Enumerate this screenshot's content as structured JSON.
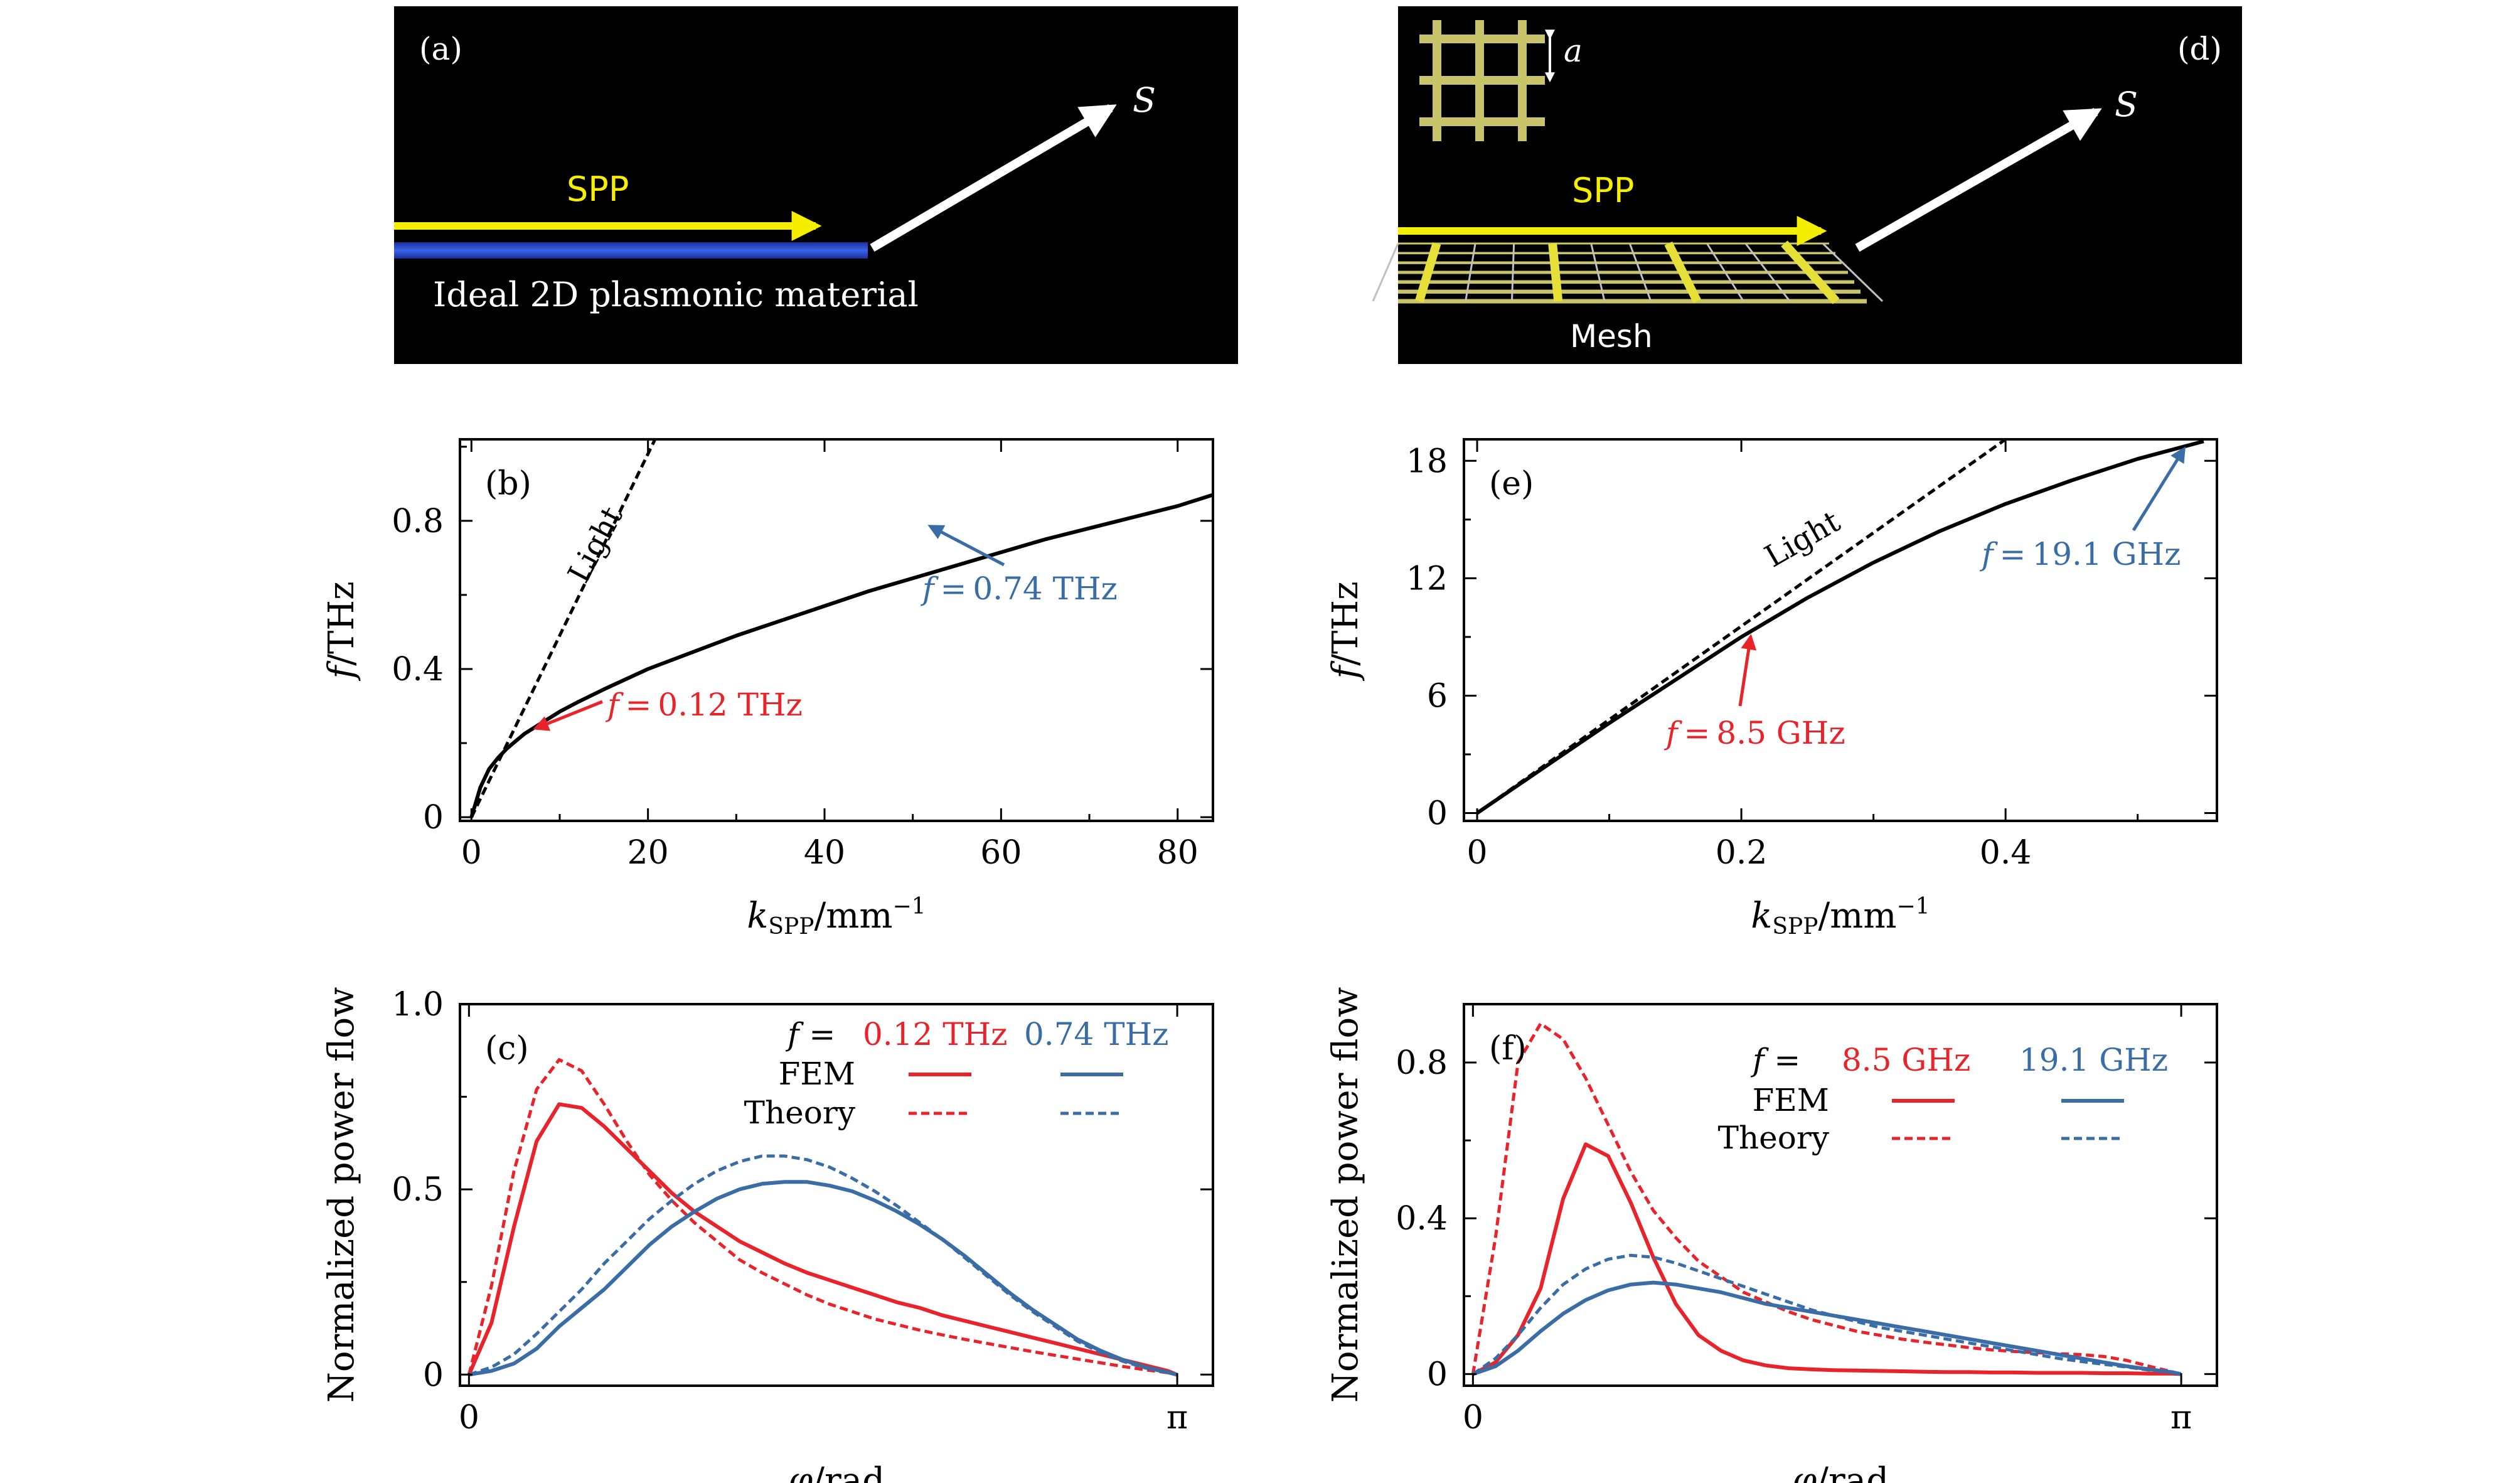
{
  "panel_a": {
    "label": "(a)",
    "spp_label": "SPP",
    "s_label": "S",
    "material_label": "Ideal 2D plasmonic material"
  },
  "panel_d": {
    "label": "(d)",
    "spp_label": "SPP",
    "s_label": "S",
    "period_label": "a",
    "mesh_label": "Mesh"
  },
  "chart_data": [
    {
      "type": "line",
      "panel": "(b)",
      "title": "",
      "xlabel": "k_SPP/mm⁻¹",
      "xlabel_main": "k",
      "xlabel_sub": "SPP",
      "xlabel_unit": "/mm",
      "xlabel_sup": "−1",
      "ylabel": "f/THz",
      "ylabel_main": "f",
      "ylabel_unit": "/THz",
      "xlim": [
        -1.3,
        84
      ],
      "ylim": [
        -0.01,
        1.02
      ],
      "xticks": [
        0,
        20,
        40,
        60,
        80
      ],
      "yticks": [
        0,
        0.4,
        0.8
      ],
      "xtick_labels": [
        "0",
        "20",
        "40",
        "60",
        "80"
      ],
      "ytick_labels": [
        "0",
        "0.4",
        "0.8"
      ],
      "series": [
        {
          "name": "",
          "style": "solid",
          "color": "#000000",
          "x": [
            0,
            1,
            2,
            3,
            4,
            5,
            6,
            8,
            10,
            12,
            15,
            20,
            25,
            30,
            35,
            40,
            45,
            50,
            55,
            60,
            65,
            70,
            75,
            80,
            84
          ],
          "y": [
            0,
            0.08,
            0.13,
            0.16,
            0.185,
            0.205,
            0.225,
            0.255,
            0.285,
            0.31,
            0.345,
            0.4,
            0.445,
            0.49,
            0.53,
            0.57,
            0.61,
            0.645,
            0.68,
            0.715,
            0.75,
            0.78,
            0.81,
            0.84,
            0.87
          ]
        },
        {
          "name": "Light",
          "style": "dashed",
          "color": "#000000",
          "x": [
            0,
            20.8
          ],
          "y": [
            0,
            1.02
          ]
        }
      ],
      "annotations": [
        {
          "text": "Light",
          "color": "#000000"
        },
        {
          "text": "f = 0.74 THz",
          "text_main": "f",
          "text_rest": " = 0.74 THz",
          "color": "#3A6CA5",
          "at": [
            52,
            0.785
          ]
        },
        {
          "text": "f = 0.12 THz",
          "text_main": "f",
          "text_rest": " = 0.12 THz",
          "color": "#E8242A",
          "at": [
            7.3,
            0.24
          ]
        }
      ]
    },
    {
      "type": "line",
      "panel": "(e)",
      "title": "",
      "xlabel": "k_SPP/mm⁻¹",
      "xlabel_main": "k",
      "xlabel_sub": "SPP",
      "xlabel_unit": "/mm",
      "xlabel_sup": "−1",
      "ylabel": "f/THz",
      "ylabel_main": "f",
      "ylabel_unit": "/THz",
      "xlim": [
        -0.01,
        0.56
      ],
      "ylim": [
        -0.4,
        19.1
      ],
      "xticks": [
        0,
        0.2,
        0.4
      ],
      "yticks": [
        0,
        6,
        12,
        18
      ],
      "xtick_labels": [
        "0",
        "0.2",
        "0.4"
      ],
      "ytick_labels": [
        "0",
        "6",
        "12",
        "18"
      ],
      "series": [
        {
          "name": "",
          "style": "solid",
          "color": "#000000",
          "x": [
            0,
            0.05,
            0.1,
            0.15,
            0.2,
            0.25,
            0.3,
            0.35,
            0.4,
            0.45,
            0.5,
            0.55
          ],
          "y": [
            0,
            2.3,
            4.6,
            6.8,
            9.0,
            11.0,
            12.8,
            14.4,
            15.8,
            17.0,
            18.1,
            19.0
          ]
        },
        {
          "name": "Light",
          "style": "dashed",
          "color": "#000000",
          "x": [
            0,
            0.4
          ],
          "y": [
            0,
            19.1
          ]
        }
      ],
      "annotations": [
        {
          "text": "Light",
          "color": "#000000"
        },
        {
          "text": "f = 19.1 GHz",
          "text_main": "f",
          "text_rest": " = 19.1 GHz",
          "color": "#3A6CA5",
          "at": [
            0.535,
            18.6
          ]
        },
        {
          "text": "f = 8.5 GHz",
          "text_main": "f",
          "text_rest": " = 8.5 GHz",
          "color": "#E8242A",
          "at": [
            0.207,
            9.0
          ]
        }
      ]
    },
    {
      "type": "line",
      "panel": "(c)",
      "title": "",
      "xlabel": "φ/rad",
      "xlabel_main": "φ",
      "xlabel_unit": "/rad",
      "ylabel": "Normalized power flow",
      "xlim": [
        -0.04,
        3.3
      ],
      "ylim": [
        -0.03,
        1.0
      ],
      "xticks": [
        0,
        3.14159
      ],
      "yticks": [
        0,
        0.5,
        1.0
      ],
      "xtick_labels": [
        "0",
        "π"
      ],
      "ytick_labels": [
        "0",
        "0.5",
        "1.0"
      ],
      "legend": {
        "f_label": "f =",
        "f_main": "f",
        "col1": "0.12 THz",
        "col2": "0.74 THz",
        "row1": "FEM",
        "row2": "Theory",
        "placement": "top-right"
      },
      "x": [
        0,
        0.1,
        0.2,
        0.3,
        0.4,
        0.5,
        0.6,
        0.7,
        0.8,
        0.9,
        1.0,
        1.1,
        1.2,
        1.3,
        1.4,
        1.5,
        1.6,
        1.7,
        1.8,
        1.9,
        2.0,
        2.1,
        2.2,
        2.3,
        2.4,
        2.5,
        2.6,
        2.7,
        2.8,
        2.9,
        3.0,
        3.1,
        3.14
      ],
      "series": [
        {
          "name": "FEM 0.12 THz",
          "style": "solid",
          "color": "#E8242A",
          "y": [
            0,
            0.14,
            0.4,
            0.63,
            0.73,
            0.72,
            0.67,
            0.61,
            0.55,
            0.49,
            0.44,
            0.4,
            0.36,
            0.33,
            0.3,
            0.275,
            0.255,
            0.235,
            0.215,
            0.195,
            0.18,
            0.16,
            0.145,
            0.13,
            0.115,
            0.1,
            0.085,
            0.07,
            0.055,
            0.04,
            0.025,
            0.01,
            0
          ]
        },
        {
          "name": "Theory 0.12 THz",
          "style": "dashed",
          "color": "#E8242A",
          "y": [
            0,
            0.24,
            0.55,
            0.77,
            0.85,
            0.82,
            0.73,
            0.63,
            0.54,
            0.47,
            0.41,
            0.36,
            0.31,
            0.275,
            0.245,
            0.215,
            0.19,
            0.17,
            0.15,
            0.135,
            0.12,
            0.107,
            0.095,
            0.084,
            0.073,
            0.062,
            0.052,
            0.042,
            0.032,
            0.022,
            0.013,
            0.005,
            0
          ]
        },
        {
          "name": "FEM 0.74 THz",
          "style": "solid",
          "color": "#3A6CA5",
          "y": [
            0,
            0.01,
            0.03,
            0.07,
            0.13,
            0.18,
            0.23,
            0.29,
            0.35,
            0.4,
            0.44,
            0.475,
            0.5,
            0.515,
            0.52,
            0.52,
            0.51,
            0.495,
            0.47,
            0.44,
            0.405,
            0.365,
            0.32,
            0.27,
            0.22,
            0.175,
            0.135,
            0.095,
            0.065,
            0.04,
            0.02,
            0.006,
            0
          ]
        },
        {
          "name": "Theory 0.74 THz",
          "style": "dashed",
          "color": "#3A6CA5",
          "y": [
            0,
            0.02,
            0.055,
            0.11,
            0.17,
            0.23,
            0.3,
            0.36,
            0.42,
            0.47,
            0.515,
            0.55,
            0.575,
            0.59,
            0.59,
            0.58,
            0.56,
            0.53,
            0.495,
            0.455,
            0.41,
            0.365,
            0.315,
            0.265,
            0.215,
            0.17,
            0.13,
            0.09,
            0.06,
            0.036,
            0.018,
            0.005,
            0
          ]
        }
      ]
    },
    {
      "type": "line",
      "panel": "(f)",
      "title": "",
      "xlabel": "φ/rad",
      "xlabel_main": "φ",
      "xlabel_unit": "/rad",
      "ylabel": "Normalized power flow",
      "xlim": [
        -0.04,
        3.3
      ],
      "ylim": [
        -0.03,
        0.95
      ],
      "xticks": [
        0,
        3.14159
      ],
      "yticks": [
        0,
        0.4,
        0.8
      ],
      "xtick_labels": [
        "0",
        "π"
      ],
      "ytick_labels": [
        "0",
        "0.4",
        "0.8"
      ],
      "legend": {
        "f_label": "f =",
        "f_main": "f",
        "col1": "8.5 GHz",
        "col2": "19.1 GHz",
        "row1": "FEM",
        "row2": "Theory",
        "placement": "top-right"
      },
      "x": [
        0,
        0.1,
        0.2,
        0.3,
        0.4,
        0.5,
        0.6,
        0.7,
        0.8,
        0.9,
        1.0,
        1.1,
        1.2,
        1.3,
        1.4,
        1.5,
        1.6,
        1.7,
        1.8,
        1.9,
        2.0,
        2.1,
        2.2,
        2.3,
        2.4,
        2.5,
        2.6,
        2.7,
        2.8,
        2.9,
        3.0,
        3.1,
        3.14
      ],
      "series": [
        {
          "name": "FEM 8.5 GHz",
          "style": "solid",
          "color": "#E8242A",
          "y": [
            0,
            0.03,
            0.1,
            0.22,
            0.45,
            0.59,
            0.56,
            0.44,
            0.3,
            0.18,
            0.1,
            0.06,
            0.035,
            0.022,
            0.015,
            0.012,
            0.01,
            0.009,
            0.008,
            0.007,
            0.006,
            0.005,
            0.005,
            0.004,
            0.004,
            0.003,
            0.003,
            0.003,
            0.002,
            0.002,
            0.001,
            0.001,
            0
          ]
        },
        {
          "name": "Theory 8.5 GHz",
          "style": "dashed",
          "color": "#E8242A",
          "y": [
            0,
            0.35,
            0.8,
            0.9,
            0.86,
            0.76,
            0.64,
            0.52,
            0.42,
            0.35,
            0.29,
            0.25,
            0.21,
            0.185,
            0.16,
            0.14,
            0.125,
            0.11,
            0.1,
            0.09,
            0.082,
            0.075,
            0.068,
            0.062,
            0.058,
            0.055,
            0.052,
            0.05,
            0.045,
            0.035,
            0.02,
            0.006,
            0
          ]
        },
        {
          "name": "FEM 19.1 GHz",
          "style": "solid",
          "color": "#3A6CA5",
          "y": [
            0,
            0.02,
            0.06,
            0.11,
            0.155,
            0.19,
            0.215,
            0.23,
            0.235,
            0.23,
            0.22,
            0.21,
            0.195,
            0.18,
            0.17,
            0.16,
            0.15,
            0.14,
            0.13,
            0.12,
            0.11,
            0.1,
            0.09,
            0.08,
            0.07,
            0.06,
            0.05,
            0.04,
            0.03,
            0.02,
            0.012,
            0.005,
            0
          ]
        },
        {
          "name": "Theory 19.1 GHz",
          "style": "dashed",
          "color": "#3A6CA5",
          "y": [
            0,
            0.04,
            0.1,
            0.17,
            0.23,
            0.27,
            0.295,
            0.305,
            0.3,
            0.285,
            0.265,
            0.245,
            0.225,
            0.205,
            0.185,
            0.165,
            0.15,
            0.135,
            0.12,
            0.11,
            0.1,
            0.09,
            0.08,
            0.07,
            0.06,
            0.05,
            0.04,
            0.032,
            0.025,
            0.018,
            0.01,
            0.004,
            0
          ]
        }
      ]
    }
  ]
}
